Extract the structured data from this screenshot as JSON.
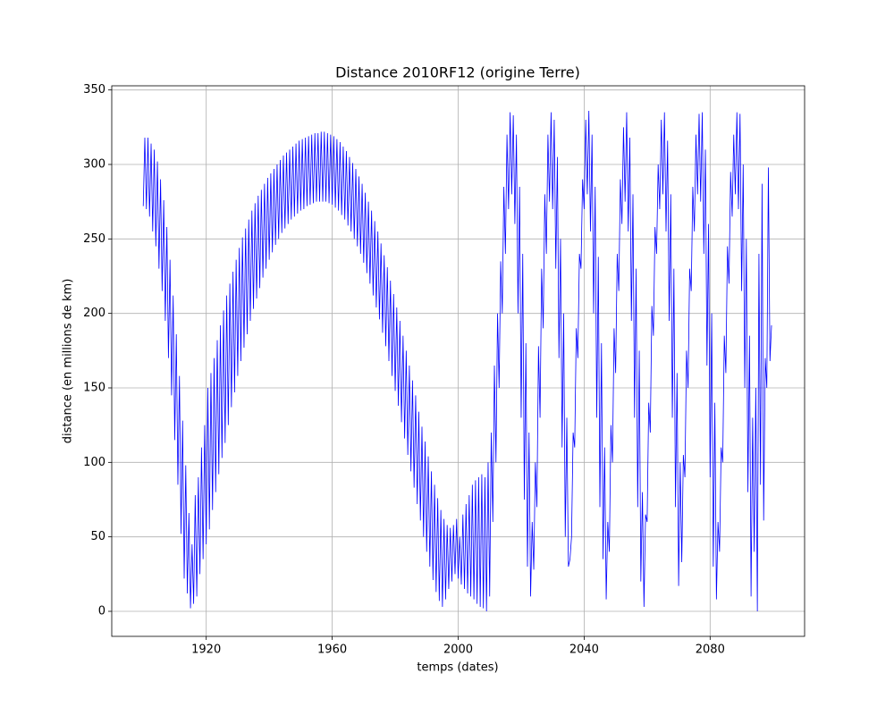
{
  "chart_data": {
    "type": "line",
    "title": "Distance 2010RF12 (origine Terre)",
    "x_label": "temps (dates)",
    "y_label": "distance (en millions de km)",
    "color": "#0000ff",
    "grid": true,
    "xlim": [
      1890,
      2110
    ],
    "ylim": [
      -16.8,
      352.8
    ],
    "xticks": [
      1920,
      1960,
      2000,
      2040,
      2080
    ],
    "yticks": [
      0,
      50,
      100,
      150,
      200,
      250,
      300,
      350
    ],
    "x": [
      1900,
      1900.5,
      1901,
      1901.5,
      1902,
      1902.5,
      1903,
      1903.5,
      1904,
      1904.5,
      1905,
      1905.5,
      1906,
      1906.5,
      1907,
      1907.5,
      1908,
      1908.5,
      1909,
      1909.5,
      1910,
      1910.5,
      1911,
      1911.5,
      1912,
      1912.5,
      1913,
      1913.5,
      1914,
      1914.5,
      1915,
      1915.5,
      1916,
      1916.5,
      1917,
      1917.5,
      1918,
      1918.5,
      1919,
      1919.5,
      1920,
      1920.5,
      1921,
      1921.5,
      1922,
      1922.5,
      1923,
      1923.5,
      1924,
      1924.5,
      1925,
      1925.5,
      1926,
      1926.5,
      1927,
      1927.5,
      1928,
      1928.5,
      1929,
      1929.5,
      1930,
      1930.5,
      1931,
      1931.5,
      1932,
      1932.5,
      1933,
      1933.5,
      1934,
      1934.5,
      1935,
      1935.5,
      1936,
      1936.5,
      1937,
      1937.5,
      1938,
      1938.5,
      1939,
      1939.5,
      1940,
      1940.5,
      1941,
      1941.5,
      1942,
      1942.5,
      1943,
      1943.5,
      1944,
      1944.5,
      1945,
      1945.5,
      1946,
      1946.5,
      1947,
      1947.5,
      1948,
      1948.5,
      1949,
      1949.5,
      1950,
      1950.5,
      1951,
      1951.5,
      1952,
      1952.5,
      1953,
      1953.5,
      1954,
      1954.5,
      1955,
      1955.5,
      1956,
      1956.5,
      1957,
      1957.5,
      1958,
      1958.5,
      1959,
      1959.5,
      1960,
      1960.5,
      1961,
      1961.5,
      1962,
      1962.5,
      1963,
      1963.5,
      1964,
      1964.5,
      1965,
      1965.5,
      1966,
      1966.5,
      1967,
      1967.5,
      1968,
      1968.5,
      1969,
      1969.5,
      1970,
      1970.5,
      1971,
      1971.5,
      1972,
      1972.5,
      1973,
      1973.5,
      1974,
      1974.5,
      1975,
      1975.5,
      1976,
      1976.5,
      1977,
      1977.5,
      1978,
      1978.5,
      1979,
      1979.5,
      1980,
      1980.5,
      1981,
      1981.5,
      1982,
      1982.5,
      1983,
      1983.5,
      1984,
      1984.5,
      1985,
      1985.5,
      1986,
      1986.5,
      1987,
      1987.5,
      1988,
      1988.5,
      1989,
      1989.5,
      1990,
      1990.5,
      1991,
      1991.5,
      1992,
      1992.5,
      1993,
      1993.5,
      1994,
      1994.5,
      1995,
      1995.5,
      1996,
      1996.5,
      1997,
      1997.5,
      1998,
      1998.5,
      1999,
      1999.5,
      2000,
      2000.5,
      2001,
      2001.5,
      2002,
      2002.5,
      2003,
      2003.5,
      2004,
      2004.5,
      2005,
      2005.5,
      2006,
      2006.5,
      2007,
      2007.5,
      2008,
      2008.5,
      2009,
      2009.5,
      2010,
      2010.5,
      2011,
      2011.5,
      2012,
      2012.5,
      2013,
      2013.5,
      2014,
      2014.5,
      2015,
      2015.5,
      2016,
      2016.5,
      2017,
      2017.5,
      2018,
      2018.5,
      2019,
      2019.5,
      2020,
      2020.5,
      2021,
      2021.5,
      2022,
      2022.5,
      2023,
      2023.5,
      2024,
      2024.5,
      2025,
      2025.5,
      2026,
      2026.5,
      2027,
      2027.5,
      2028,
      2028.5,
      2029,
      2029.5,
      2030,
      2030.5,
      2031,
      2031.5,
      2032,
      2032.5,
      2033,
      2033.5,
      2034,
      2034.5,
      2035,
      2035.5,
      2036,
      2036.5,
      2037,
      2037.5,
      2038,
      2038.5,
      2039,
      2039.5,
      2040,
      2040.5,
      2041,
      2041.5,
      2042,
      2042.5,
      2043,
      2043.5,
      2044,
      2044.5,
      2045,
      2045.5,
      2046,
      2046.5,
      2047,
      2047.5,
      2048,
      2048.5,
      2049,
      2049.5,
      2050,
      2050.5,
      2051,
      2051.5,
      2052,
      2052.5,
      2053,
      2053.5,
      2054,
      2054.5,
      2055,
      2055.5,
      2056,
      2056.5,
      2057,
      2057.5,
      2058,
      2058.5,
      2059,
      2059.5,
      2060,
      2060.5,
      2061,
      2061.5,
      2062,
      2062.5,
      2063,
      2063.5,
      2064,
      2064.5,
      2065,
      2065.5,
      2066,
      2066.5,
      2067,
      2067.5,
      2068,
      2068.5,
      2069,
      2069.5,
      2070,
      2070.5,
      2071,
      2071.5,
      2072,
      2072.5,
      2073,
      2073.5,
      2074,
      2074.5,
      2075,
      2075.5,
      2076,
      2076.5,
      2077,
      2077.5,
      2078,
      2078.5,
      2079,
      2079.5,
      2080,
      2080.5,
      2081,
      2081.5,
      2082,
      2082.5,
      2083,
      2083.5,
      2084,
      2084.5,
      2085,
      2085.5,
      2086,
      2086.5,
      2087,
      2087.5,
      2088,
      2088.5,
      2089,
      2089.5,
      2090,
      2090.5,
      2091,
      2091.5,
      2092,
      2092.5,
      2093,
      2093.5,
      2094,
      2094.5,
      2095,
      2095.5,
      2096,
      2096.5,
      2097,
      2097.5,
      2098,
      2098.5,
      2099,
      2099.5
    ],
    "values": [
      272,
      318,
      270,
      318,
      265,
      314,
      255,
      310,
      245,
      302,
      230,
      290,
      215,
      276,
      195,
      258,
      170,
      236,
      145,
      212,
      115,
      186,
      85,
      158,
      52,
      128,
      22,
      98,
      12,
      66,
      2,
      45,
      5,
      78,
      10,
      90,
      25,
      110,
      35,
      125,
      45,
      150,
      55,
      160,
      68,
      170,
      80,
      182,
      92,
      192,
      103,
      202,
      113,
      212,
      125,
      220,
      137,
      228,
      147,
      236,
      158,
      244,
      168,
      251,
      177,
      257,
      186,
      263,
      195,
      269,
      203,
      274,
      210,
      279,
      217,
      283,
      224,
      287,
      230,
      291,
      236,
      294,
      241,
      297,
      246,
      300,
      250,
      303,
      254,
      306,
      257,
      308,
      260,
      310,
      263,
      312,
      265,
      314,
      267,
      316,
      269,
      317,
      270,
      318,
      272,
      319,
      273,
      320,
      274,
      321,
      275,
      321,
      275,
      322,
      275,
      322,
      275,
      321,
      274,
      320,
      273,
      319,
      271,
      317,
      269,
      315,
      266,
      312,
      263,
      309,
      259,
      305,
      255,
      301,
      250,
      297,
      245,
      292,
      240,
      287,
      234,
      281,
      227,
      275,
      220,
      269,
      212,
      262,
      204,
      255,
      196,
      247,
      187,
      239,
      178,
      231,
      168,
      222,
      158,
      213,
      148,
      204,
      138,
      195,
      127,
      185,
      116,
      175,
      105,
      165,
      94,
      155,
      83,
      145,
      72,
      134,
      61,
      124,
      50,
      114,
      40,
      104,
      30,
      94,
      21,
      85,
      13,
      76,
      7,
      68,
      3,
      62,
      8,
      58,
      15,
      56,
      20,
      58,
      25,
      62,
      22,
      50,
      18,
      65,
      15,
      72,
      12,
      78,
      10,
      85,
      8,
      88,
      5,
      90,
      3,
      92,
      2,
      90,
      0,
      100,
      10,
      120,
      60,
      165,
      100,
      200,
      150,
      235,
      200,
      285,
      240,
      320,
      270,
      335,
      280,
      333,
      260,
      320,
      200,
      285,
      130,
      240,
      75,
      180,
      30,
      120,
      10,
      60,
      28,
      100,
      70,
      178,
      130,
      230,
      190,
      280,
      240,
      320,
      275,
      335,
      270,
      330,
      230,
      305,
      170,
      250,
      110,
      200,
      50,
      130,
      30,
      35,
      50,
      120,
      110,
      190,
      170,
      240,
      230,
      290,
      270,
      330,
      280,
      336,
      255,
      320,
      200,
      285,
      130,
      238,
      70,
      180,
      35,
      110,
      8,
      60,
      40,
      125,
      100,
      190,
      160,
      240,
      215,
      290,
      260,
      325,
      275,
      335,
      255,
      318,
      195,
      280,
      130,
      230,
      70,
      175,
      20,
      80,
      3,
      65,
      60,
      140,
      120,
      205,
      185,
      258,
      240,
      300,
      270,
      330,
      280,
      335,
      255,
      316,
      195,
      280,
      130,
      230,
      70,
      160,
      17,
      100,
      33,
      105,
      90,
      175,
      150,
      230,
      215,
      285,
      255,
      320,
      280,
      334,
      275,
      335,
      240,
      310,
      165,
      260,
      90,
      200,
      30,
      140,
      8,
      60,
      40,
      110,
      100,
      185,
      160,
      245,
      220,
      295,
      265,
      320,
      280,
      335,
      270,
      334,
      215,
      300,
      150,
      250,
      80,
      185,
      10,
      130,
      40,
      150,
      0,
      240,
      85,
      287,
      61,
      170,
      150,
      298,
      168,
      192
    ]
  }
}
